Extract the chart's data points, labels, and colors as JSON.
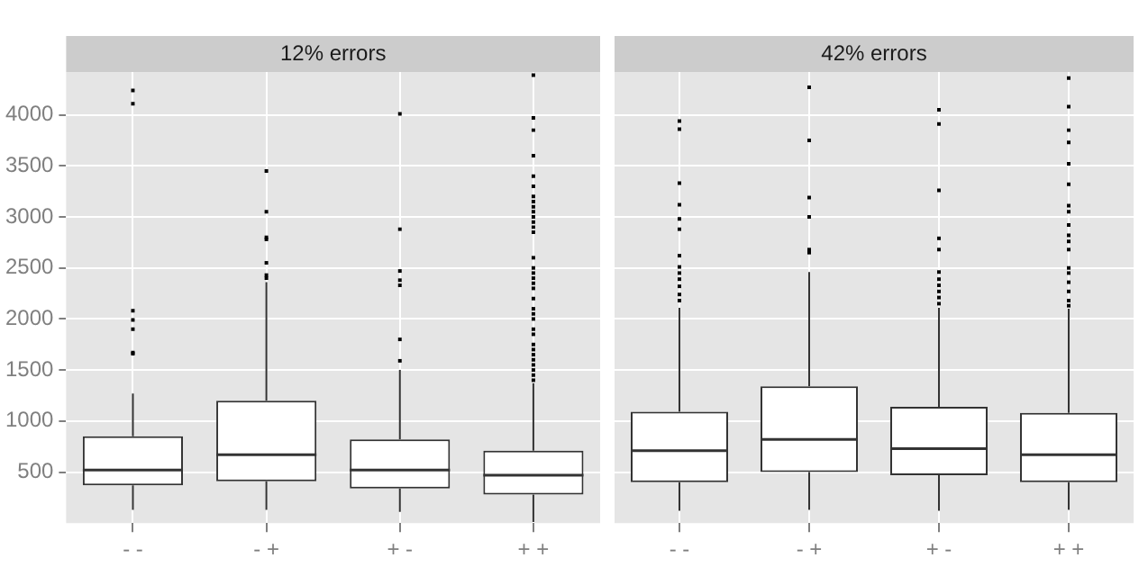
{
  "chart_data": [
    {
      "type": "box",
      "title": "12% errors",
      "categories": [
        "- -",
        "- +",
        "+ -",
        "+ +"
      ],
      "color": "#333333",
      "ylim": [
        0,
        4420
      ],
      "yticks": [
        500,
        1000,
        1500,
        2000,
        2500,
        3000,
        3500,
        4000
      ],
      "grid": true,
      "boxes": [
        {
          "low": 130,
          "q1": 370,
          "median": 520,
          "q3": 850,
          "high": 1270,
          "outliers": [
            1660,
            1670,
            1900,
            1990,
            2080,
            4110,
            4240
          ]
        },
        {
          "low": 130,
          "q1": 410,
          "median": 670,
          "q3": 1200,
          "high": 2360,
          "outliers": [
            2400,
            2430,
            2550,
            2780,
            2800,
            3050,
            3450
          ]
        },
        {
          "low": 110,
          "q1": 340,
          "median": 520,
          "q3": 820,
          "high": 1500,
          "outliers": [
            1590,
            1800,
            2330,
            2380,
            2470,
            2880,
            4010
          ]
        },
        {
          "low": 10,
          "q1": 280,
          "median": 470,
          "q3": 710,
          "high": 1370,
          "outliers": [
            1400,
            1450,
            1500,
            1550,
            1600,
            1650,
            1700,
            1750,
            1850,
            1900,
            2000,
            2050,
            2100,
            2200,
            2300,
            2350,
            2400,
            2450,
            2500,
            2600,
            2850,
            2900,
            2950,
            3000,
            3050,
            3100,
            3150,
            3200,
            3300,
            3400,
            3600,
            3850,
            3970,
            4390
          ]
        }
      ]
    },
    {
      "type": "box",
      "title": "42% errors",
      "categories": [
        "- -",
        "- +",
        "+ -",
        "+ +"
      ],
      "color": "#333333",
      "ylim": [
        0,
        4420
      ],
      "yticks": [
        500,
        1000,
        1500,
        2000,
        2500,
        3000,
        3500,
        4000
      ],
      "grid": true,
      "tick_labels": "x",
      "boxes": [
        {
          "low": 120,
          "q1": 400,
          "median": 710,
          "q3": 1090,
          "high": 2110,
          "outliers": [
            2180,
            2240,
            2320,
            2390,
            2450,
            2510,
            2620,
            2880,
            2980,
            3120,
            3330,
            3860,
            3940
          ]
        },
        {
          "low": 130,
          "q1": 500,
          "median": 820,
          "q3": 1340,
          "high": 2460,
          "outliers": [
            2650,
            2680,
            3000,
            3190,
            3750,
            4270
          ]
        },
        {
          "low": 120,
          "q1": 470,
          "median": 730,
          "q3": 1140,
          "high": 2110,
          "outliers": [
            2150,
            2210,
            2270,
            2330,
            2390,
            2460,
            2680,
            2790,
            3260,
            3910,
            4050
          ]
        },
        {
          "low": 130,
          "q1": 400,
          "median": 670,
          "q3": 1080,
          "high": 2100,
          "outliers": [
            2130,
            2180,
            2270,
            2360,
            2450,
            2500,
            2680,
            2760,
            2820,
            2920,
            3050,
            3110,
            3320,
            3520,
            3730,
            3850,
            4080,
            4360
          ]
        }
      ]
    }
  ]
}
